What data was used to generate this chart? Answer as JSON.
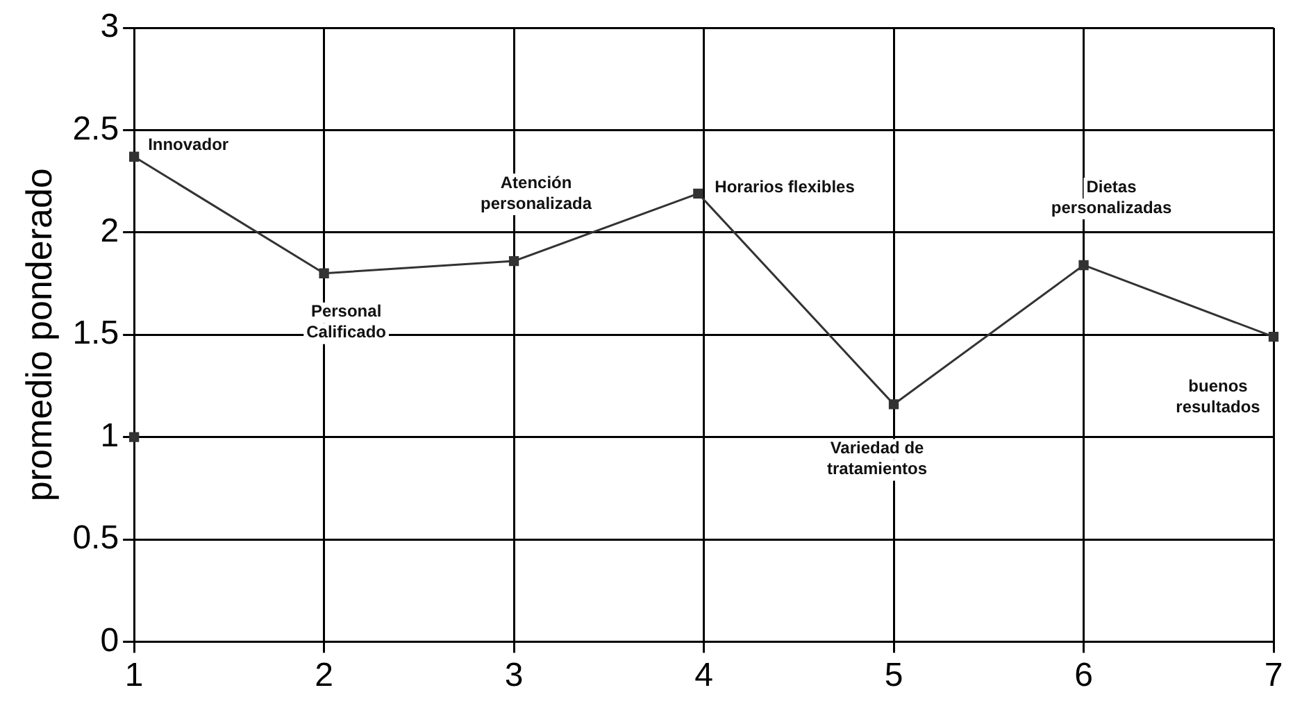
{
  "chart_data": {
    "type": "line",
    "ylabel": "promedio ponderado",
    "xlim": [
      1,
      7
    ],
    "xticks": [
      1,
      2,
      3,
      4,
      5,
      6,
      7
    ],
    "ylim": [
      0,
      3
    ],
    "yticks": [
      0,
      0.5,
      1,
      1.5,
      2,
      2.5,
      3
    ],
    "grid": true,
    "legend": false,
    "marker": "square",
    "line_style": "solid",
    "series": [
      {
        "color": "#333333",
        "x": [
          1,
          2,
          3,
          3.97,
          5,
          6,
          7
        ],
        "values": [
          2.37,
          1.8,
          1.86,
          2.19,
          1.16,
          1.84,
          1.49
        ]
      },
      {
        "type": "scatter",
        "color": "#333333",
        "x": [
          1
        ],
        "values": [
          1
        ]
      }
    ],
    "annotations": [
      {
        "text": "Innovador",
        "x": 1,
        "y": 2.37
      },
      {
        "text": "Personal\nCalificado",
        "x": 2,
        "y": 1.8
      },
      {
        "text": "Atención\npersonalizada",
        "x": 3,
        "y": 1.86
      },
      {
        "text": "Horarios flexibles",
        "x": 3.97,
        "y": 2.19
      },
      {
        "text": "Variedad de\ntratamientos",
        "x": 5,
        "y": 1.16
      },
      {
        "text": "Dietas\npersonalizadas",
        "x": 6,
        "y": 1.84
      },
      {
        "text": "buenos\nresultados",
        "x": 7,
        "y": 1.49
      }
    ]
  }
}
